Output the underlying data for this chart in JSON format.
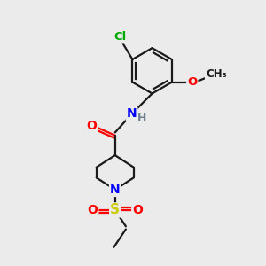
{
  "bg_color": "#ebebeb",
  "bond_color": "#1a1a1a",
  "atom_colors": {
    "C": "#1a1a1a",
    "N": "#0000ff",
    "O": "#ff0000",
    "S": "#cccc00",
    "Cl": "#00aa00",
    "H": "#708090"
  },
  "figsize": [
    3.0,
    3.0
  ],
  "dpi": 100
}
